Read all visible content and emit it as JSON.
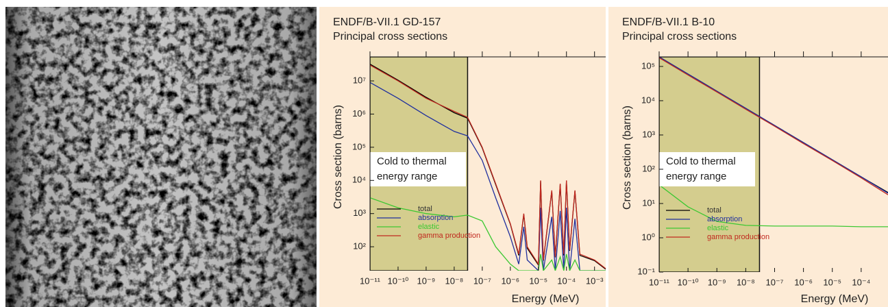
{
  "chart_data": [
    {
      "type": "line",
      "title": "ENDF/B-VII.1 GD-157",
      "subtitle": "Principal cross sections",
      "x_label": "Energy (MeV)",
      "y_label": "Cross section (barns)",
      "log_x": true,
      "log_y": true,
      "annotation": "Cold to thermal energy range",
      "shaded_xlim": [
        1e-11,
        3e-08
      ],
      "shaded_color": "#d4cd8e",
      "background": "#fdebd6",
      "x": [
        1e-11,
        1e-10,
        1e-09,
        1e-08,
        3e-08,
        1e-07,
        3e-07,
        1e-06,
        2e-06,
        3e-06,
        4e-06,
        1e-05,
        1.2e-05,
        1.5e-05,
        3e-05,
        4e-05,
        6e-05,
        8e-05,
        0.0001,
        0.00013,
        0.0002,
        0.0003,
        0.001,
        0.0025
      ],
      "series": [
        {
          "name": "total",
          "color": "#000000",
          "values": [
            32000000.0,
            10500000.0,
            3200000.0,
            1100000.0,
            750000.0,
            95000.0,
            7500.0,
            480,
            55,
            950,
            90,
            28,
            9500,
            38,
            4800,
            48,
            7500,
            55,
            9500,
            75,
            4800,
            55,
            38,
            21
          ]
        },
        {
          "name": "absorption",
          "color": "#1f2f9e",
          "values": [
            9000000.0,
            3000000.0,
            900000.0,
            300000.0,
            220000.0,
            40000.0,
            3000.0,
            200,
            30,
            400,
            40,
            19,
            1500,
            19,
            800,
            19,
            1200,
            19,
            1500,
            19,
            700,
            19,
            19,
            19
          ]
        },
        {
          "name": "elastic",
          "color": "#3cc832",
          "values": [
            3000,
            1500,
            1000,
            800,
            900,
            600,
            100,
            30,
            19,
            19,
            19,
            19,
            60,
            19,
            40,
            19,
            50,
            19,
            60,
            19,
            40,
            19,
            19,
            19
          ]
        },
        {
          "name": "gamma production",
          "color": "#c0281e",
          "values": [
            30000000.0,
            10000000.0,
            3000000.0,
            1200000.0,
            800000.0,
            100000.0,
            8000.0,
            500,
            60,
            1000,
            100,
            30,
            10000.0,
            40,
            5000.0,
            50,
            8000.0,
            60,
            10000.0,
            80,
            5000.0,
            60,
            40,
            22
          ]
        }
      ],
      "xlim": [
        1e-11,
        0.0025
      ],
      "ylim": [
        19,
        53000000.0
      ],
      "xticks": [
        {
          "value": 1e-11,
          "label": "10⁻¹¹"
        },
        {
          "value": 1e-10,
          "label": "10⁻¹⁰"
        },
        {
          "value": 1e-09,
          "label": "10⁻⁹"
        },
        {
          "value": 1e-08,
          "label": "10⁻⁸"
        },
        {
          "value": 1e-07,
          "label": "10⁻⁷"
        },
        {
          "value": 1e-06,
          "label": "10⁻⁶"
        },
        {
          "value": 1e-05,
          "label": "10⁻⁵"
        },
        {
          "value": 0.0001,
          "label": "10⁻⁴"
        },
        {
          "value": 0.001,
          "label": "10⁻³"
        }
      ],
      "yticks": [
        {
          "value": 100,
          "label": "10²"
        },
        {
          "value": 1000,
          "label": "10³"
        },
        {
          "value": 10000,
          "label": "10⁴"
        },
        {
          "value": 100000,
          "label": "10⁵"
        },
        {
          "value": 1000000,
          "label": "10⁶"
        },
        {
          "value": 10000000,
          "label": "10⁷"
        }
      ]
    },
    {
      "type": "line",
      "title": "ENDF/B-VII.1 B-10",
      "subtitle": "Principal cross sections",
      "x_label": "Energy (MeV)",
      "y_label": "Cross section (barns)",
      "log_x": true,
      "log_y": true,
      "annotation": "Cold to thermal energy range",
      "shaded_xlim": [
        1e-11,
        3e-08
      ],
      "shaded_color": "#d4cd8e",
      "background": "#fdebd6",
      "x": [
        1e-11,
        1e-10,
        1e-09,
        1e-08,
        1e-07,
        1e-06,
        1e-05,
        0.0001,
        0.00085
      ],
      "series": [
        {
          "name": "total",
          "color": "#000000",
          "values": [
            190000.0,
            60000.0,
            19000.0,
            6000.0,
            1900.0,
            600,
            190,
            60,
            21
          ]
        },
        {
          "name": "absorption",
          "color": "#1f2f9e",
          "values": [
            190000.0,
            60000.0,
            19000.0,
            6000.0,
            1900.0,
            600,
            190,
            60,
            20
          ]
        },
        {
          "name": "elastic",
          "color": "#3cc832",
          "values": [
            35,
            8,
            3,
            2.3,
            2.2,
            2.2,
            2.2,
            2.1,
            2.1
          ]
        },
        {
          "name": "gamma production",
          "color": "#c0281e",
          "values": [
            180000.0,
            56000.0,
            18000.0,
            5600.0,
            1800.0,
            560,
            180,
            56,
            18
          ]
        }
      ],
      "xlim": [
        1e-11,
        0.00085
      ],
      "ylim": [
        0.1,
        190000.0
      ],
      "xticks": [
        {
          "value": 1e-11,
          "label": "10⁻¹¹"
        },
        {
          "value": 1e-10,
          "label": "10⁻¹⁰"
        },
        {
          "value": 1e-09,
          "label": "10⁻⁹"
        },
        {
          "value": 1e-08,
          "label": "10⁻⁸"
        },
        {
          "value": 1e-07,
          "label": "10⁻⁷"
        },
        {
          "value": 1e-06,
          "label": "10⁻⁶"
        },
        {
          "value": 1e-05,
          "label": "10⁻⁵"
        },
        {
          "value": 0.0001,
          "label": "10⁻⁴"
        }
      ],
      "yticks": [
        {
          "value": 0.1,
          "label": "10⁻¹"
        },
        {
          "value": 1,
          "label": "10⁰"
        },
        {
          "value": 10,
          "label": "10¹"
        },
        {
          "value": 100,
          "label": "10²"
        },
        {
          "value": 1000,
          "label": "10³"
        },
        {
          "value": 10000,
          "label": "10⁴"
        },
        {
          "value": 100000,
          "label": "10⁵"
        }
      ]
    }
  ]
}
